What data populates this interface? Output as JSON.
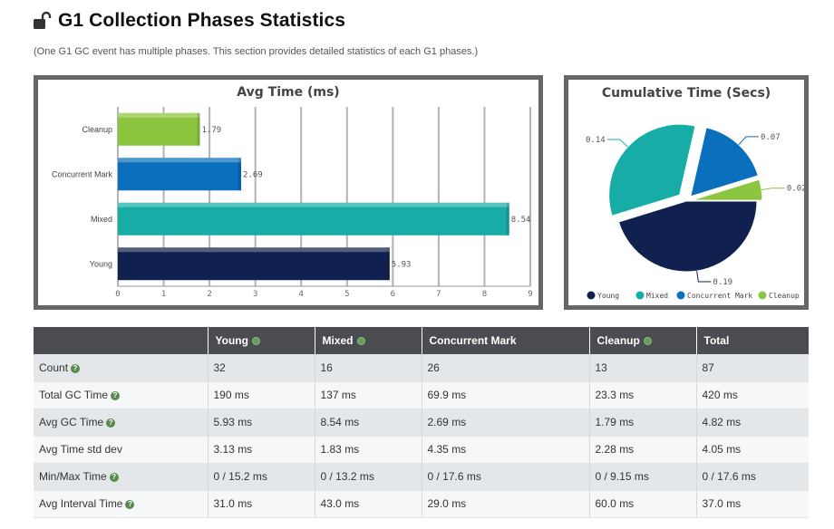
{
  "header": {
    "title": "G1 Collection Phases Statistics",
    "subtitle": "(One G1 GC event has multiple phases. This section provides detailed statistics of each G1 phases.)"
  },
  "colors": {
    "young": "#10214f",
    "mixed": "#17ada6",
    "concurrent_mark": "#0a6fbc",
    "cleanup": "#8cc63f",
    "panel_border": "#666666",
    "table_header": "#4a4c51"
  },
  "chart_data": [
    {
      "type": "bar",
      "orientation": "horizontal",
      "title": "Avg Time (ms)",
      "categories": [
        "Cleanup",
        "Concurrent Mark",
        "Mixed",
        "Young"
      ],
      "values": [
        1.79,
        2.69,
        8.54,
        5.93
      ],
      "value_labels": [
        "1.79",
        "2.69",
        "8.54",
        "5.93"
      ],
      "colors": [
        "#8cc63f",
        "#0a6fbc",
        "#17ada6",
        "#10214f"
      ],
      "xlim": [
        0,
        9
      ],
      "xticks": [
        "0",
        "1",
        "2",
        "3",
        "4",
        "5",
        "6",
        "7",
        "8",
        "9"
      ],
      "grid": true
    },
    {
      "type": "pie",
      "title": "Cumulative Time (Secs)",
      "labels": [
        "Young",
        "Mixed",
        "Concurrent Mark",
        "Cleanup"
      ],
      "values": [
        0.19,
        0.14,
        0.07,
        0.02
      ],
      "value_labels": [
        "0.19",
        "0.14",
        "0.07",
        "0.02"
      ],
      "colors": [
        "#10214f",
        "#17ada6",
        "#0a6fbc",
        "#8cc63f"
      ],
      "legend_position": "bottom"
    }
  ],
  "table": {
    "columns": [
      "",
      "Young",
      "Mixed",
      "Concurrent Mark",
      "Cleanup",
      "Total"
    ],
    "rows": [
      {
        "label": "Count",
        "help": true,
        "cells": [
          "32",
          "16",
          "26",
          "13",
          "87"
        ]
      },
      {
        "label": "Total GC Time",
        "help": true,
        "cells": [
          "190 ms",
          "137 ms",
          "69.9 ms",
          "23.3 ms",
          "420 ms"
        ]
      },
      {
        "label": "Avg GC Time",
        "help": true,
        "cells": [
          "5.93 ms",
          "8.54 ms",
          "2.69 ms",
          "1.79 ms",
          "4.82 ms"
        ]
      },
      {
        "label": "Avg Time std dev",
        "help": false,
        "cells": [
          "3.13 ms",
          "1.83 ms",
          "4.35 ms",
          "2.28 ms",
          "4.05 ms"
        ]
      },
      {
        "label": "Min/Max Time",
        "help": true,
        "cells": [
          "0 / 15.2 ms",
          "0 / 13.2 ms",
          "0 / 17.6 ms",
          "0 / 9.15 ms",
          "0 / 17.6 ms"
        ]
      },
      {
        "label": "Avg Interval Time",
        "help": true,
        "cells": [
          "31.0 ms",
          "43.0 ms",
          "29.0 ms",
          "60.0 ms",
          "37.0 ms"
        ]
      }
    ]
  }
}
